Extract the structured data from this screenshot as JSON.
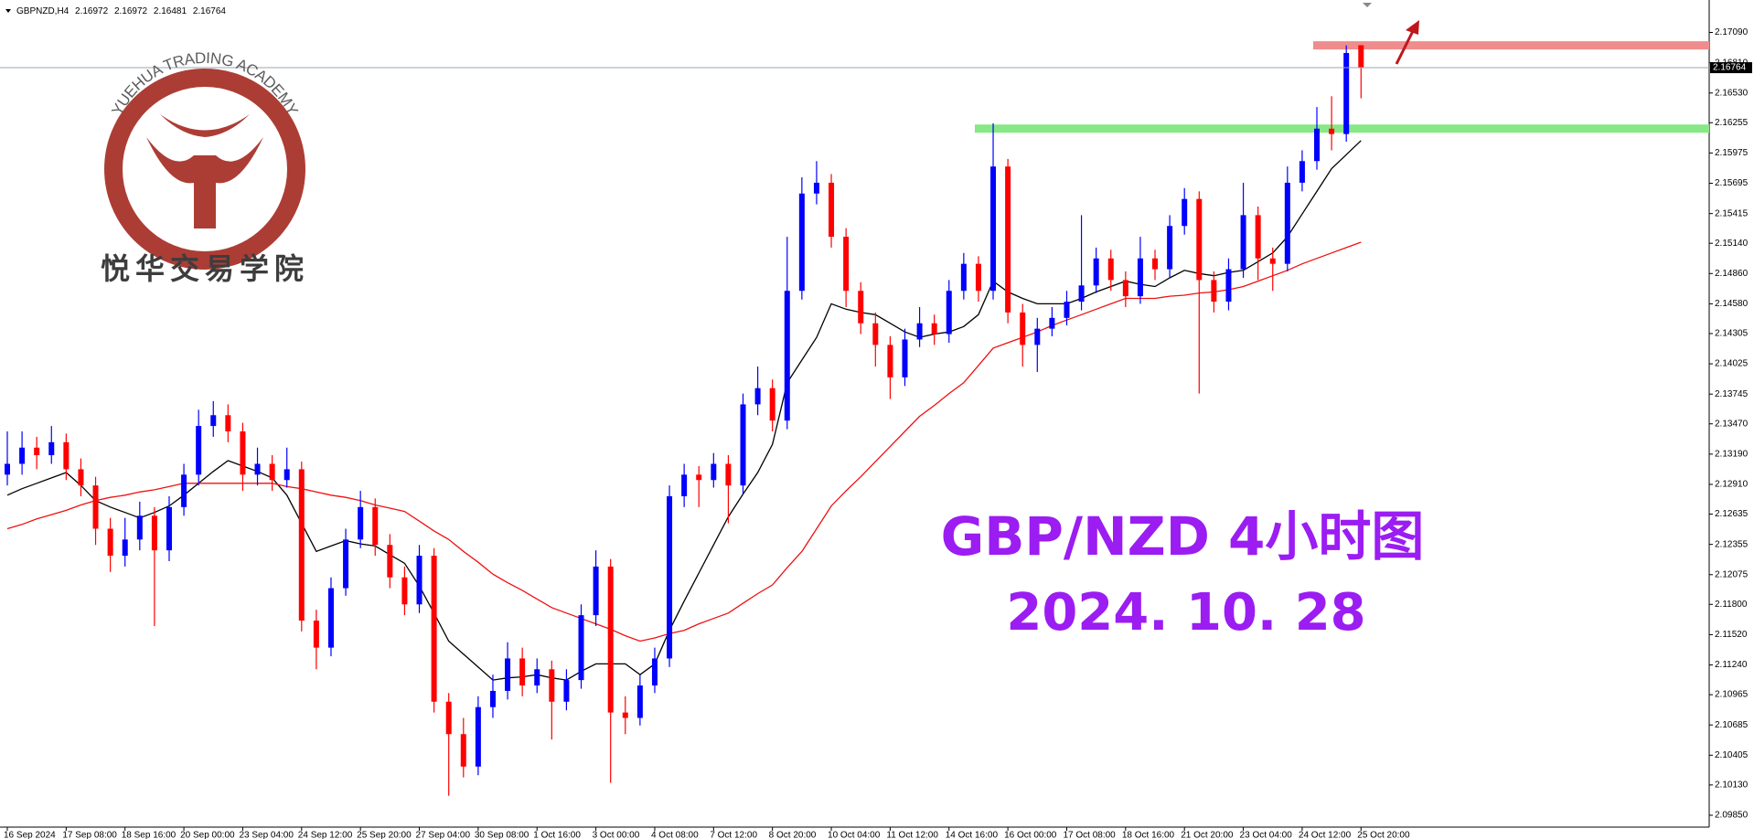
{
  "chart_data": {
    "type": "candlestick",
    "symbol": "GBPNZD,H4",
    "header_ohlc": [
      2.16972,
      2.16972,
      2.16481,
      2.16764
    ],
    "bid": 2.16764,
    "up_color": "#0000ff",
    "down_color": "#ff0000",
    "ylim": [
      2.0974,
      2.1739
    ],
    "yticks": [
      {
        "value": 2.1709,
        "label": "2.17090"
      },
      {
        "value": 2.1681,
        "label": "2.16810"
      },
      {
        "value": 2.1653,
        "label": "2.16530"
      },
      2.16255,
      2.15975,
      2.15695,
      2.15415,
      {
        "value": 2.1514,
        "label": "2.15140"
      },
      {
        "value": 2.1486,
        "label": "2.14860"
      },
      {
        "value": 2.1458,
        "label": "2.14580"
      },
      2.14305,
      2.14025,
      2.13745,
      {
        "value": 2.1347,
        "label": "2.13470"
      },
      {
        "value": 2.1319,
        "label": "2.13190"
      },
      {
        "value": 2.1291,
        "label": "2.12910"
      },
      2.12635,
      2.12355,
      2.12075,
      {
        "value": 2.118,
        "label": "2.11800"
      },
      {
        "value": 2.1152,
        "label": "2.11520"
      },
      {
        "value": 2.1124,
        "label": "2.11240"
      },
      2.10965,
      2.10685,
      2.10405,
      {
        "value": 2.1013,
        "label": "2.10130"
      },
      {
        "value": 2.0985,
        "label": "2.09850"
      }
    ],
    "categories": [
      "16 Sep 2024",
      null,
      null,
      null,
      "17 Sep 08:00",
      null,
      null,
      null,
      "18 Sep 16:00",
      null,
      null,
      null,
      "20 Sep 00:00",
      null,
      null,
      null,
      "23 Sep 04:00",
      null,
      null,
      null,
      "24 Sep 12:00",
      null,
      null,
      null,
      "25 Sep 20:00",
      null,
      null,
      null,
      "27 Sep 04:00",
      null,
      null,
      null,
      "30 Sep 08:00",
      null,
      null,
      null,
      "1 Oct 16:00",
      null,
      null,
      null,
      "3 Oct 00:00",
      null,
      null,
      null,
      "4 Oct 08:00",
      null,
      null,
      null,
      "7 Oct 12:00",
      null,
      null,
      null,
      "8 Oct 20:00",
      null,
      null,
      null,
      "10 Oct 04:00",
      null,
      null,
      null,
      "11 Oct 12:00",
      null,
      null,
      null,
      "14 Oct 16:00",
      null,
      null,
      null,
      "16 Oct 00:00",
      null,
      null,
      null,
      "17 Oct 08:00",
      null,
      null,
      null,
      "18 Oct 16:00",
      null,
      null,
      null,
      "21 Oct 20:00",
      null,
      null,
      null,
      "23 Oct 04:00",
      null,
      null,
      null,
      "24 Oct 12:00",
      null,
      null,
      null,
      "25 Oct 20:00"
    ],
    "open": [
      2.13,
      2.131,
      2.1325,
      2.1318,
      2.133,
      2.1305,
      2.129,
      2.125,
      2.1225,
      2.124,
      2.1262,
      2.123,
      2.127,
      2.13,
      2.1345,
      2.1355,
      2.134,
      2.13,
      2.131,
      2.1295,
      2.1305,
      2.1165,
      2.114,
      2.1195,
      2.124,
      2.127,
      2.1235,
      2.1205,
      2.118,
      2.1225,
      2.109,
      2.106,
      2.103,
      2.1085,
      2.11,
      2.113,
      2.1105,
      2.112,
      2.109,
      2.111,
      2.117,
      2.1215,
      2.108,
      2.1075,
      2.1105,
      2.113,
      2.128,
      2.13,
      2.1295,
      2.131,
      2.129,
      2.1365,
      2.138,
      2.135,
      2.147,
      2.156,
      2.157,
      2.152,
      2.147,
      2.144,
      2.142,
      2.139,
      2.1425,
      2.144,
      2.143,
      2.147,
      2.1495,
      2.147,
      2.1585,
      2.145,
      2.142,
      2.1435,
      2.1445,
      2.146,
      2.1475,
      2.15,
      2.148,
      2.1465,
      2.15,
      2.149,
      2.153,
      2.1555,
      2.148,
      2.146,
      2.149,
      2.154,
      2.15,
      2.1495,
      2.157,
      2.159,
      2.162,
      2.1615,
      2.16972
    ],
    "high": [
      2.134,
      2.134,
      2.1335,
      2.1345,
      2.1338,
      2.1315,
      2.1298,
      2.126,
      2.126,
      2.1275,
      2.127,
      2.128,
      2.131,
      2.136,
      2.1368,
      2.1365,
      2.1348,
      2.1325,
      2.1318,
      2.1325,
      2.1312,
      2.1175,
      2.1205,
      2.125,
      2.1285,
      2.1278,
      2.1245,
      2.1215,
      2.1235,
      2.1232,
      2.1098,
      2.1075,
      2.1095,
      2.1115,
      2.1145,
      2.114,
      2.113,
      2.1128,
      2.112,
      2.118,
      2.123,
      2.1222,
      2.1095,
      2.1115,
      2.114,
      2.129,
      2.131,
      2.1308,
      2.132,
      2.1318,
      2.1375,
      2.14,
      2.1388,
      2.152,
      2.1575,
      2.159,
      2.1578,
      2.1528,
      2.1478,
      2.145,
      2.1428,
      2.1435,
      2.1455,
      2.1448,
      2.148,
      2.1505,
      2.1502,
      2.1625,
      2.1592,
      2.1458,
      2.1445,
      2.1455,
      2.147,
      2.154,
      2.151,
      2.1508,
      2.1488,
      2.152,
      2.1508,
      2.154,
      2.1565,
      2.1562,
      2.1488,
      2.15,
      2.157,
      2.1548,
      2.151,
      2.1585,
      2.16,
      2.164,
      2.165,
      2.1697,
      2.16972
    ],
    "low": [
      2.129,
      2.13,
      2.1305,
      2.131,
      2.1295,
      2.128,
      2.1235,
      2.121,
      2.1215,
      2.123,
      2.116,
      2.122,
      2.1262,
      2.129,
      2.1335,
      2.133,
      2.1285,
      2.129,
      2.1285,
      2.1288,
      2.1155,
      2.112,
      2.1132,
      2.1188,
      2.1232,
      2.1225,
      2.1195,
      2.117,
      2.1172,
      2.108,
      2.1003,
      2.102,
      2.1022,
      2.1075,
      2.1092,
      2.1095,
      2.1098,
      2.1055,
      2.1082,
      2.1102,
      2.116,
      2.1015,
      2.106,
      2.1068,
      2.1098,
      2.1122,
      2.127,
      2.127,
      2.1288,
      2.1255,
      2.1282,
      2.1355,
      2.134,
      2.1342,
      2.1462,
      2.155,
      2.151,
      2.1455,
      2.143,
      2.14,
      2.137,
      2.1382,
      2.1418,
      2.142,
      2.1422,
      2.1462,
      2.146,
      2.1462,
      2.144,
      2.14,
      2.1395,
      2.1428,
      2.1438,
      2.1452,
      2.1468,
      2.147,
      2.1455,
      2.1458,
      2.148,
      2.1482,
      2.1522,
      2.1375,
      2.145,
      2.1452,
      2.1482,
      2.148,
      2.147,
      2.1488,
      2.1562,
      2.1582,
      2.16,
      2.1608,
      2.16481
    ],
    "close": [
      2.131,
      2.1325,
      2.1318,
      2.133,
      2.1305,
      2.129,
      2.125,
      2.1225,
      2.124,
      2.1262,
      2.123,
      2.127,
      2.13,
      2.1345,
      2.1355,
      2.134,
      2.13,
      2.131,
      2.1295,
      2.1305,
      2.1165,
      2.114,
      2.1195,
      2.124,
      2.127,
      2.1235,
      2.1205,
      2.118,
      2.1225,
      2.109,
      2.106,
      2.103,
      2.1085,
      2.11,
      2.113,
      2.1105,
      2.112,
      2.109,
      2.111,
      2.117,
      2.1215,
      2.108,
      2.1075,
      2.1105,
      2.113,
      2.128,
      2.13,
      2.1295,
      2.131,
      2.129,
      2.1365,
      2.138,
      2.135,
      2.147,
      2.156,
      2.157,
      2.152,
      2.147,
      2.144,
      2.142,
      2.139,
      2.1425,
      2.144,
      2.143,
      2.147,
      2.1495,
      2.147,
      2.1585,
      2.145,
      2.142,
      2.1435,
      2.1445,
      2.146,
      2.1475,
      2.15,
      2.148,
      2.1465,
      2.15,
      2.149,
      2.153,
      2.1555,
      2.148,
      2.146,
      2.149,
      2.154,
      2.15,
      2.1495,
      2.157,
      2.159,
      2.162,
      2.1615,
      2.169,
      2.16764
    ],
    "overlays": [
      {
        "color": "#000000",
        "values": [
          2.1281,
          2.1287,
          2.1292,
          2.1297,
          2.1302,
          2.129,
          2.1276,
          2.127,
          2.1265,
          2.126,
          2.1265,
          2.1271,
          2.1281,
          2.1292,
          2.1303,
          2.1313,
          2.1308,
          2.1303,
          2.1297,
          2.1281,
          2.1255,
          2.1229,
          2.1234,
          2.1239,
          2.1236,
          2.1234,
          2.1226,
          2.1218,
          2.1197,
          2.1172,
          2.1146,
          2.1134,
          2.1122,
          2.111,
          2.1112,
          2.1113,
          2.1115,
          2.1112,
          2.111,
          2.1118,
          2.1125,
          2.1125,
          2.1125,
          2.1115,
          2.1125,
          2.1156,
          2.1183,
          2.1209,
          2.1235,
          2.1261,
          2.1282,
          2.1302,
          2.1328,
          2.1385,
          2.1406,
          2.1427,
          2.1458,
          2.1453,
          2.145,
          2.1448,
          2.144,
          2.1432,
          2.1427,
          2.143,
          2.1432,
          2.1437,
          2.1448,
          2.1479,
          2.1469,
          2.1463,
          2.1458,
          2.1458,
          2.1458,
          2.1463,
          2.1469,
          2.1474,
          2.1479,
          2.1476,
          2.1474,
          2.1482,
          2.1489,
          2.1486,
          2.1484,
          2.1487,
          2.1489,
          2.1497,
          2.1505,
          2.152,
          2.1541,
          2.1562,
          2.1583,
          2.1596,
          2.1609
        ]
      },
      {
        "color": "#ee1111",
        "values": [
          2.125,
          2.1254,
          2.1259,
          2.1263,
          2.1267,
          2.1272,
          2.1276,
          2.1279,
          2.1281,
          2.1284,
          2.1286,
          2.1289,
          2.1292,
          2.1292,
          2.1292,
          2.1292,
          2.1292,
          2.1292,
          2.1292,
          2.1289,
          2.1287,
          2.1284,
          2.1281,
          2.1279,
          2.1276,
          2.1272,
          2.1269,
          2.1266,
          2.1257,
          2.1248,
          2.124,
          2.1229,
          2.1219,
          2.1208,
          2.12,
          2.1193,
          2.1185,
          2.1177,
          2.1172,
          2.1167,
          2.1162,
          2.1157,
          2.1151,
          2.1146,
          2.1149,
          2.1153,
          2.1156,
          2.1162,
          2.1167,
          2.1172,
          2.1181,
          2.119,
          2.1198,
          2.1214,
          2.1229,
          2.125,
          2.1271,
          2.1285,
          2.1298,
          2.1312,
          2.1326,
          2.134,
          2.1354,
          2.1364,
          2.1375,
          2.1385,
          2.1401,
          2.1417,
          2.1422,
          2.1427,
          2.1432,
          2.1438,
          2.1443,
          2.1448,
          2.1453,
          2.1458,
          2.1463,
          2.1463,
          2.1463,
          2.1465,
          2.1466,
          2.1468,
          2.1469,
          2.1471,
          2.1474,
          2.1479,
          2.1484,
          2.1489,
          2.1495,
          2.15,
          2.1505,
          2.151,
          2.1515
        ]
      }
    ],
    "levels": [
      {
        "value": 2.1697,
        "color": "#f08c8c"
      },
      {
        "value": 2.162,
        "color": "#86e886"
      }
    ],
    "annotations": [
      "GBP/NZD 4小时图",
      "2024. 10. 28"
    ],
    "watermark": {
      "en": "YUEHUA TRADING ACADEMY",
      "zh": "悦华交易学院"
    }
  }
}
